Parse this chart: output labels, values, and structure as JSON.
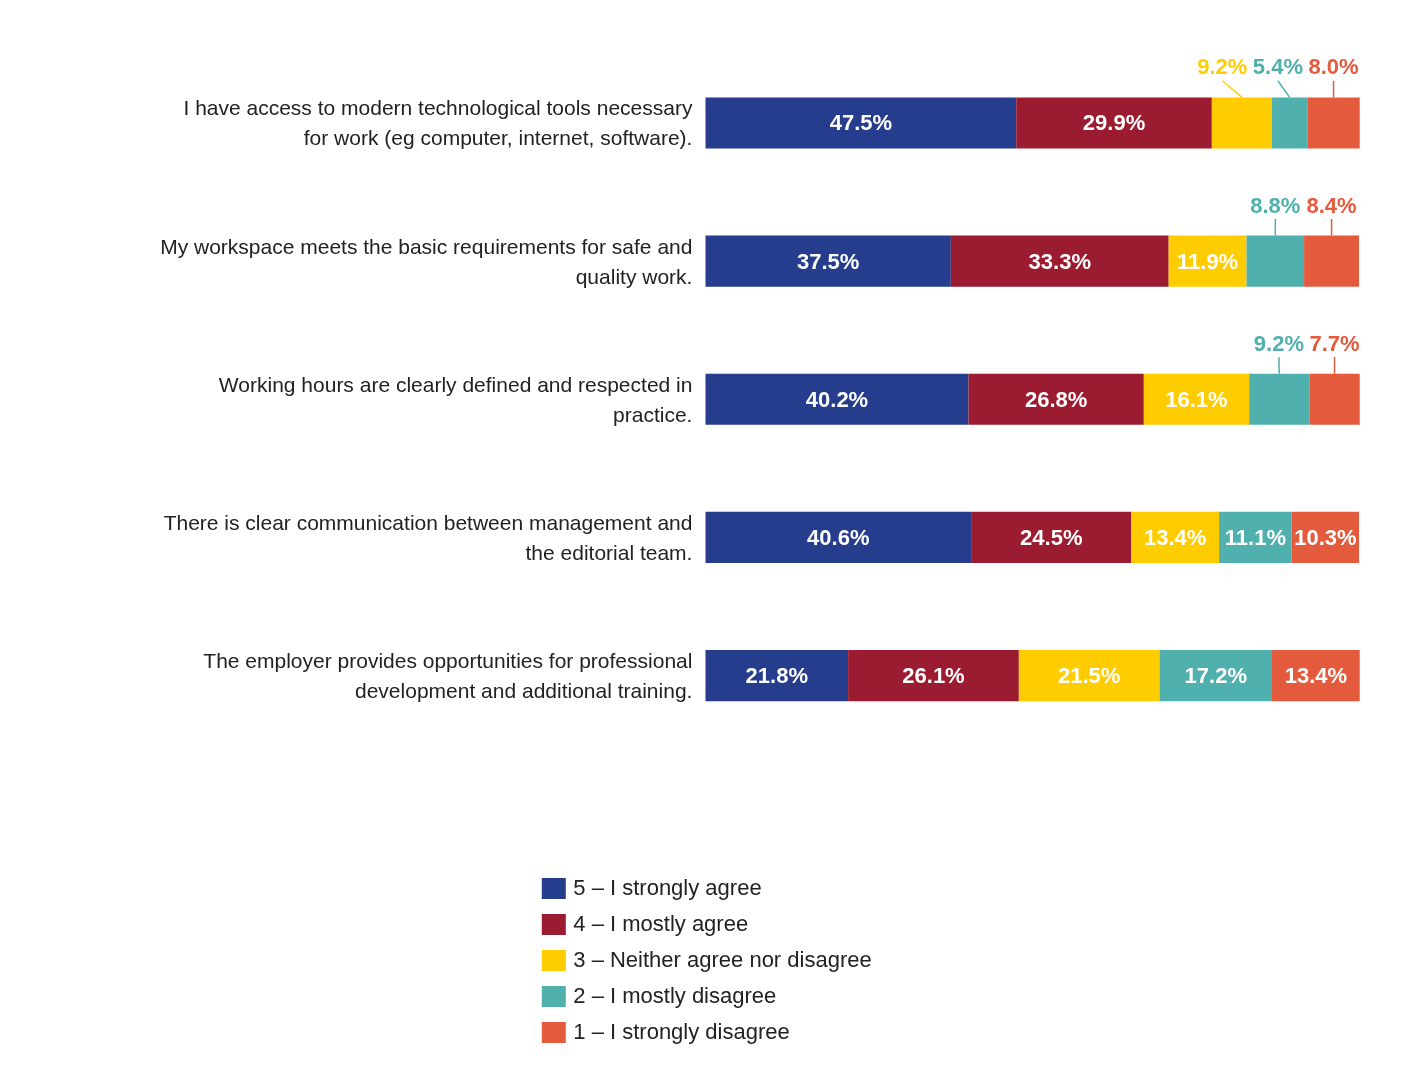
{
  "chart_data": {
    "type": "bar",
    "orientation": "horizontal",
    "stacked": true,
    "legend": "bottom",
    "grid": false,
    "tick_labels": false,
    "categories": [
      "I have access to modern technological tools necessary for work (eg computer, internet, software).",
      "My workspace meets the basic requirements for safe and quality work.",
      "Working hours are clearly defined and respected in practice.",
      "There is clear communication between management and the editorial team.",
      "The employer provides opportunities for professional development and additional training."
    ],
    "series": [
      {
        "name": "5 – I strongly agree",
        "color": "#253d8c",
        "values": [
          47.5,
          37.5,
          40.2,
          40.6,
          21.8
        ],
        "value_labels": [
          "47.5%",
          "37.5%",
          "40.2%",
          "40.6%",
          "21.8%"
        ]
      },
      {
        "name": "4 – I mostly agree",
        "color": "#9b1b30",
        "values": [
          29.9,
          33.3,
          26.8,
          24.5,
          26.1
        ],
        "value_labels": [
          "29.9%",
          "33.3%",
          "26.8%",
          "24.5%",
          "26.1%"
        ]
      },
      {
        "name": "3 – Neither agree nor disagree",
        "color": "#ffcc00",
        "values": [
          9.2,
          11.9,
          16.1,
          13.4,
          21.5
        ],
        "value_labels": [
          "9.2%",
          "11.9%",
          "16.1%",
          "13.4%",
          "21.5%"
        ]
      },
      {
        "name": "2 – I mostly disagree",
        "color": "#4fb0ae",
        "values": [
          5.4,
          8.8,
          9.2,
          11.1,
          17.2
        ],
        "value_labels": [
          "5.4%",
          "8.8%",
          "9.2%",
          "11.1%",
          "17.2%"
        ]
      },
      {
        "name": "1 – I strongly disagree",
        "color": "#e35a3c",
        "values": [
          8.0,
          8.4,
          7.7,
          10.3,
          13.4
        ],
        "value_labels": [
          "8.0%",
          "8.4%",
          "7.7%",
          "10.3%",
          "13.4%"
        ]
      }
    ]
  }
}
